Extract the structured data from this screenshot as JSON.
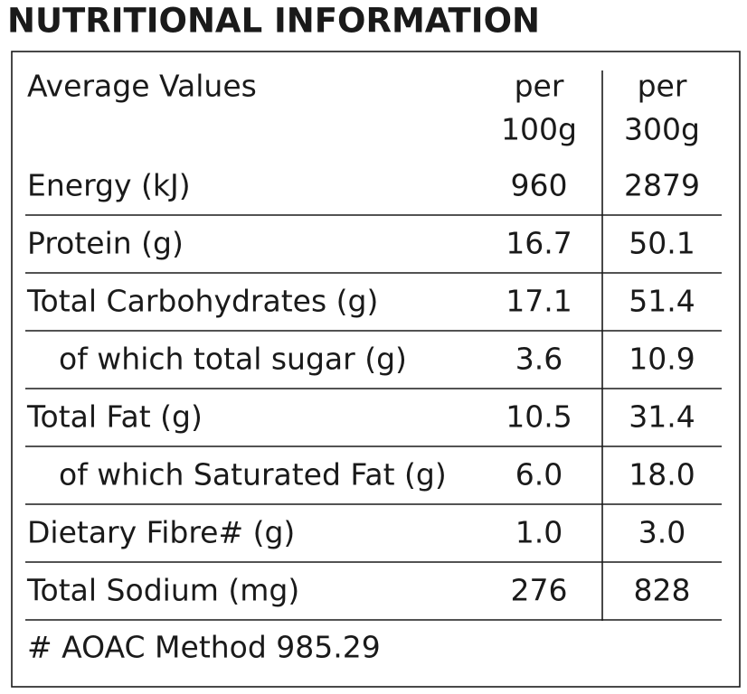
{
  "title": "NUTRITIONAL INFORMATION",
  "table": {
    "header": {
      "label": "Average Values",
      "columns": [
        [
          "per",
          "100g"
        ],
        [
          "per",
          "300g"
        ]
      ]
    },
    "rows": [
      {
        "label": "Energy (kJ)",
        "values": [
          "960",
          "2879"
        ]
      },
      {
        "label": "Protein (g)",
        "values": [
          "16.7",
          "50.1"
        ]
      },
      {
        "label": "Total Carbohydrates (g)",
        "values": [
          "17.1",
          "51.4"
        ],
        "sub": [
          {
            "label": "of which total sugar (g)",
            "values": [
              "3.6",
              "10.9"
            ]
          }
        ]
      },
      {
        "label": "Total Fat (g)",
        "values": [
          "10.5",
          "31.4"
        ],
        "sub": [
          {
            "label": "of which Saturated Fat (g)",
            "values": [
              "6.0",
              "18.0"
            ]
          }
        ]
      },
      {
        "label": "Dietary Fibre# (g)",
        "values": [
          "1.0",
          "3.0"
        ]
      },
      {
        "label": "Total Sodium (mg)",
        "values": [
          "276",
          "828"
        ]
      }
    ],
    "footnote": "# AOAC Method 985.29"
  }
}
